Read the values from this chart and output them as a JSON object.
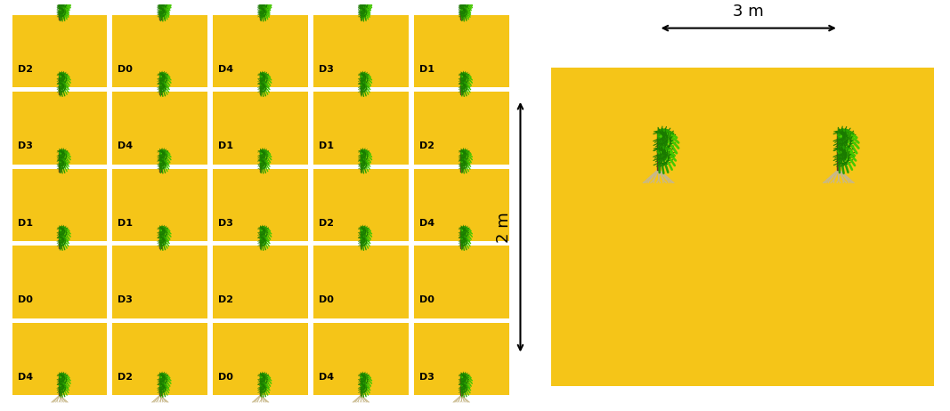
{
  "bg_color": "#FFFFFF",
  "plot_bg": "#F5C518",
  "stem_color": "#6B3A1F",
  "root_color": "#C8B88A",
  "green1": "#1A7A00",
  "green2": "#28A000",
  "green3": "#45C800",
  "columns": [
    [
      "D2",
      "D3",
      "D1",
      "D0",
      "D4"
    ],
    [
      "D0",
      "D4",
      "D1",
      "D3",
      "D2"
    ],
    [
      "D4",
      "D1",
      "D3",
      "D2",
      "D0"
    ],
    [
      "D3",
      "D1",
      "D2",
      "D0",
      "D4"
    ],
    [
      "D1",
      "D2",
      "D4",
      "D0",
      "D3"
    ]
  ],
  "num_cols": 5,
  "num_rows": 5,
  "label_fontsize": 8,
  "dim_label_3m": "3 m",
  "dim_label_2m": "2 m",
  "fig_width": 10.67,
  "fig_height": 4.62
}
